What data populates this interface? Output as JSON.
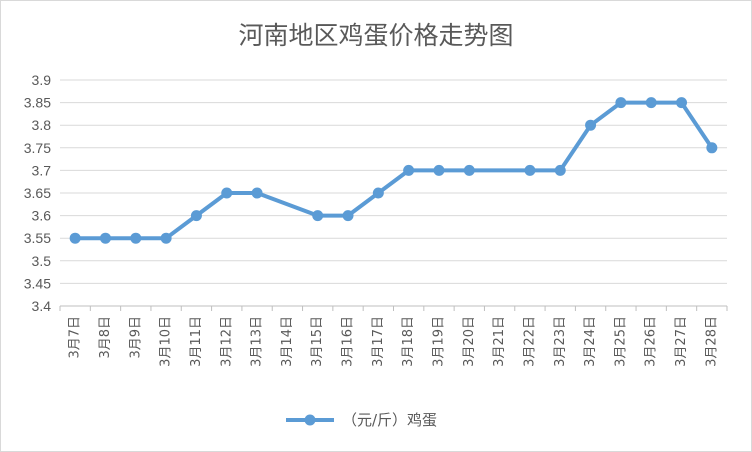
{
  "chart_data": {
    "type": "line",
    "title": "河南地区鸡蛋价格走势图",
    "categories": [
      "3月7日",
      "3月8日",
      "3月9日",
      "3月10日",
      "3月11日",
      "3月12日",
      "3月13日",
      "3月14日",
      "3月15日",
      "3月16日",
      "3月17日",
      "3月18日",
      "3月19日",
      "3月20日",
      "3月21日",
      "3月22日",
      "3月23日",
      "3月24日",
      "3月25日",
      "3月26日",
      "3月27日",
      "3月28日"
    ],
    "series": [
      {
        "name": "（元/斤）鸡蛋",
        "values": [
          3.55,
          3.55,
          3.55,
          3.55,
          3.6,
          3.65,
          3.65,
          null,
          3.6,
          3.6,
          3.65,
          3.7,
          3.7,
          3.7,
          null,
          3.7,
          3.7,
          3.8,
          3.85,
          3.85,
          3.85,
          3.75
        ],
        "color": "#5b9bd5"
      }
    ],
    "ylim": [
      3.4,
      3.9
    ],
    "yticks": [
      "3.4",
      "3.45",
      "3.5",
      "3.55",
      "3.6",
      "3.65",
      "3.7",
      "3.75",
      "3.8",
      "3.85",
      "3.9"
    ],
    "xlabel": "",
    "ylabel": "",
    "grid": true,
    "legend": "bottom"
  }
}
